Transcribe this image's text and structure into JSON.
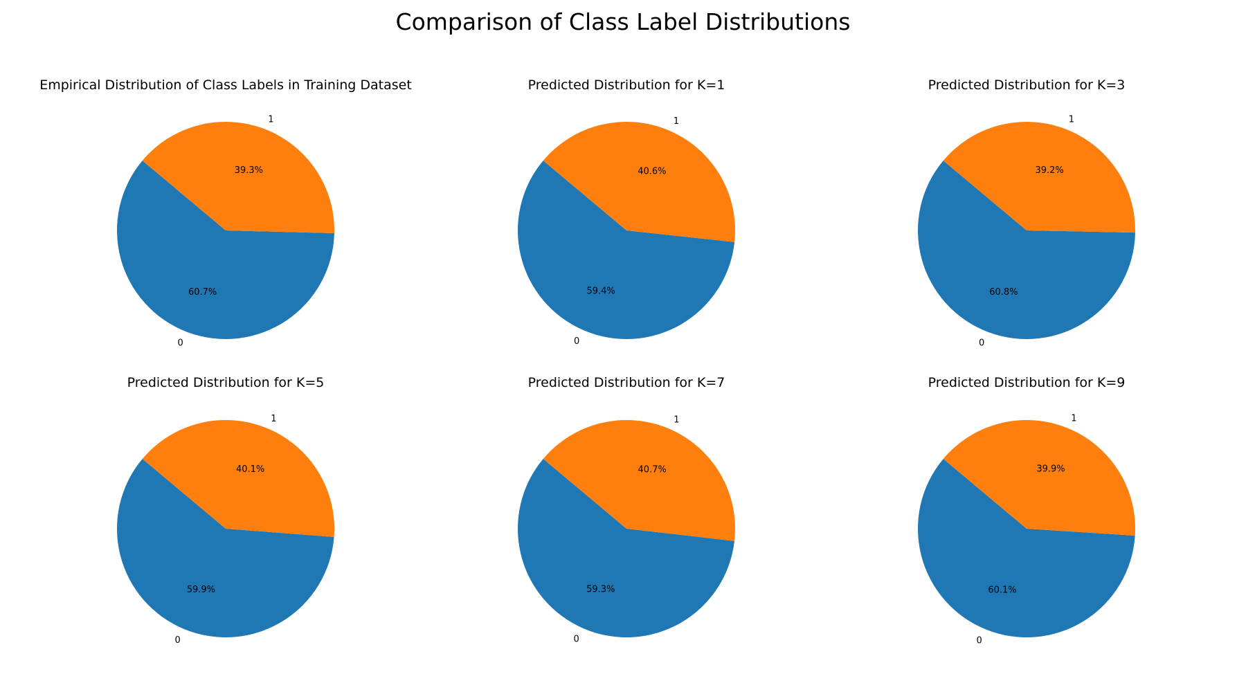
{
  "figure": {
    "title": "Comparison of Class Label Distributions"
  },
  "colors": {
    "class_0": "#1f77b4",
    "class_1": "#ff7f0e"
  },
  "chart_data": [
    {
      "type": "pie",
      "title": "Empirical Distribution of Class Labels in Training Dataset",
      "categories": [
        "0",
        "1"
      ],
      "values": [
        60.7,
        39.3
      ],
      "labels_pct": [
        "60.7%",
        "39.3%"
      ]
    },
    {
      "type": "pie",
      "title": "Predicted Distribution for K=1",
      "categories": [
        "0",
        "1"
      ],
      "values": [
        59.4,
        40.6
      ],
      "labels_pct": [
        "59.4%",
        "40.6%"
      ]
    },
    {
      "type": "pie",
      "title": "Predicted Distribution for K=3",
      "categories": [
        "0",
        "1"
      ],
      "values": [
        60.8,
        39.2
      ],
      "labels_pct": [
        "60.8%",
        "39.2%"
      ]
    },
    {
      "type": "pie",
      "title": "Predicted Distribution for K=5",
      "categories": [
        "0",
        "1"
      ],
      "values": [
        59.9,
        40.1
      ],
      "labels_pct": [
        "59.9%",
        "40.1%"
      ]
    },
    {
      "type": "pie",
      "title": "Predicted Distribution for K=7",
      "categories": [
        "0",
        "1"
      ],
      "values": [
        59.3,
        40.7
      ],
      "labels_pct": [
        "59.3%",
        "40.7%"
      ]
    },
    {
      "type": "pie",
      "title": "Predicted Distribution for K=9",
      "categories": [
        "0",
        "1"
      ],
      "values": [
        60.1,
        39.9
      ],
      "labels_pct": [
        "60.1%",
        "39.9%"
      ]
    }
  ]
}
